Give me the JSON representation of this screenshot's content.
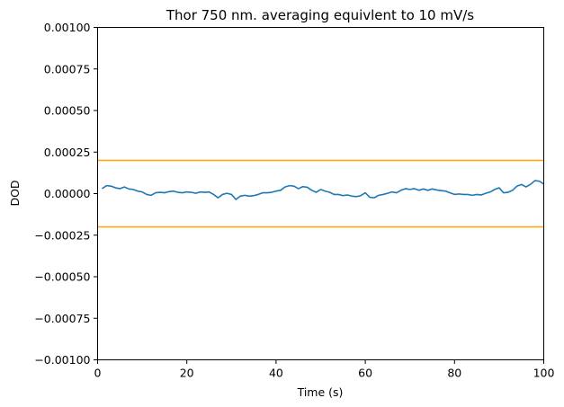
{
  "chart_data": {
    "type": "line",
    "title": "Thor 750 nm. averaging equivlent to 10 mV/s",
    "xlabel": "Time (s)",
    "ylabel": "DOD",
    "xlim": [
      0,
      100
    ],
    "ylim": [
      -0.001,
      0.001
    ],
    "x_ticks": [
      0,
      20,
      40,
      60,
      80,
      100
    ],
    "x_tick_labels": [
      "0",
      "20",
      "40",
      "60",
      "80",
      "100"
    ],
    "y_ticks": [
      -0.001,
      -0.00075,
      -0.0005,
      -0.00025,
      0.0,
      0.00025,
      0.0005,
      0.00075,
      0.001
    ],
    "y_tick_labels": [
      "−0.00100",
      "−0.00075",
      "−0.00050",
      "−0.00025",
      "0.00000",
      "0.00025",
      "0.00050",
      "0.00075",
      "0.00100"
    ],
    "grid": false,
    "series": [
      {
        "color": "#1f77b4",
        "x": [
          1,
          2,
          3,
          4,
          5,
          6,
          7,
          8,
          9,
          10,
          11,
          12,
          13,
          14,
          15,
          16,
          17,
          18,
          19,
          20,
          21,
          22,
          23,
          24,
          25,
          26,
          27,
          28,
          29,
          30,
          31,
          32,
          33,
          34,
          35,
          36,
          37,
          38,
          39,
          40,
          41,
          42,
          43,
          44,
          45,
          46,
          47,
          48,
          49,
          50,
          51,
          52,
          53,
          54,
          55,
          56,
          57,
          58,
          59,
          60,
          61,
          62,
          63,
          64,
          65,
          66,
          67,
          68,
          69,
          70,
          71,
          72,
          73,
          74,
          75,
          76,
          77,
          78,
          79,
          80,
          81,
          82,
          83,
          84,
          85,
          86,
          87,
          88,
          89,
          90,
          91,
          92,
          93,
          94,
          95,
          96,
          97,
          98,
          99,
          100
        ],
        "y": [
          3e-05,
          4.8e-05,
          4.5e-05,
          3.5e-05,
          3e-05,
          4e-05,
          2.8e-05,
          2.5e-05,
          1.5e-05,
          1e-05,
          -5e-06,
          -1e-05,
          5e-06,
          8e-06,
          5e-06,
          1.2e-05,
          1.5e-05,
          8e-06,
          5e-06,
          1e-05,
          8e-06,
          2e-06,
          1e-05,
          8e-06,
          1e-05,
          -5e-06,
          -2.5e-05,
          -5e-06,
          2e-06,
          -5e-06,
          -3.5e-05,
          -1.5e-05,
          -1e-05,
          -1.5e-05,
          -1.2e-05,
          -5e-06,
          5e-06,
          5e-06,
          8e-06,
          1.5e-05,
          2e-05,
          4e-05,
          4.8e-05,
          4.5e-05,
          3e-05,
          4.2e-05,
          3.8e-05,
          2e-05,
          8e-06,
          2.5e-05,
          1.5e-05,
          8e-06,
          -5e-06,
          -5e-06,
          -1.2e-05,
          -8e-06,
          -1.5e-05,
          -1.8e-05,
          -1.2e-05,
          5e-06,
          -2.2e-05,
          -2.5e-05,
          -1e-05,
          -5e-06,
          2e-06,
          1e-05,
          5e-06,
          2e-05,
          3e-05,
          2.5e-05,
          3e-05,
          2e-05,
          2.8e-05,
          2e-05,
          2.8e-05,
          2.2e-05,
          1.8e-05,
          1.5e-05,
          5e-06,
          -5e-06,
          -2e-06,
          -5e-06,
          -5e-06,
          -1e-05,
          -5e-06,
          -8e-06,
          2e-06,
          1e-05,
          2.5e-05,
          3.5e-05,
          5e-06,
          8e-06,
          2e-05,
          4.5e-05,
          5.5e-05,
          4e-05,
          5.5e-05,
          7.8e-05,
          7.5e-05,
          5.8e-05
        ]
      },
      {
        "color": "#ffa500",
        "x": [
          0,
          100
        ],
        "y": [
          0.0002,
          0.0002
        ]
      },
      {
        "color": "#ffa500",
        "x": [
          0,
          100
        ],
        "y": [
          -0.0002,
          -0.0002
        ]
      }
    ]
  }
}
